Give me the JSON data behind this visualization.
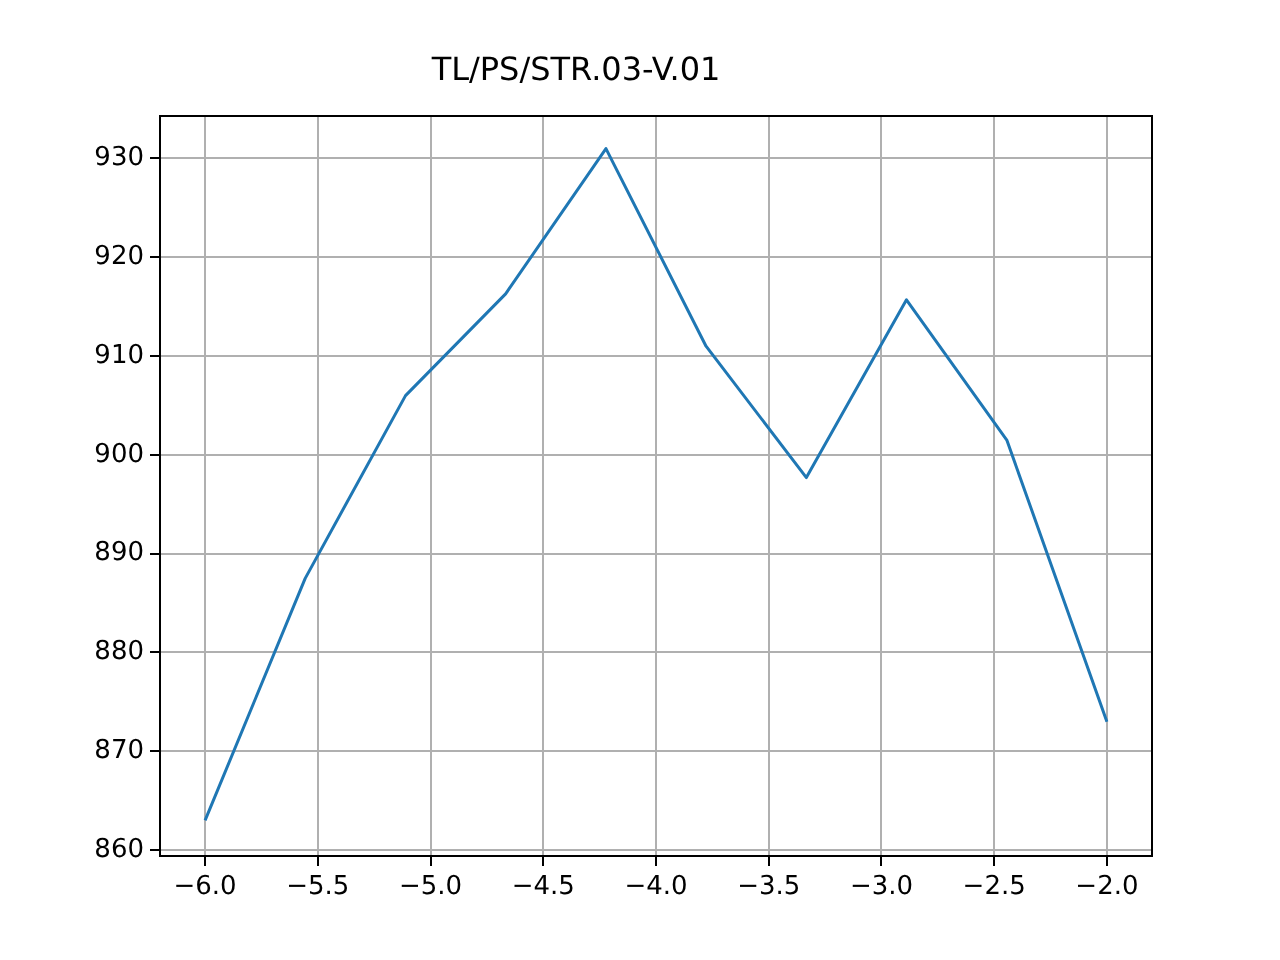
{
  "chart_data": {
    "type": "line",
    "title": "TL/PS/STR.03-V.01",
    "x": [
      -6,
      -5.556,
      -5.111,
      -4.667,
      -4.222,
      -3.778,
      -3.333,
      -2.889,
      -2.444,
      -2
    ],
    "series": [
      {
        "color": "#1f77b4",
        "values": [
          863,
          887.5,
          906,
          916.3,
          931,
          911,
          897.7,
          915.7,
          901.5,
          873
        ]
      }
    ],
    "xlim": [
      -6.2,
      -1.8
    ],
    "xticks": [
      {
        "value": -6,
        "label": "−6.0"
      },
      {
        "value": -5.5,
        "label": "−5.5"
      },
      {
        "value": -5,
        "label": "−5.0"
      },
      {
        "value": -4.5,
        "label": "−4.5"
      },
      {
        "value": -4,
        "label": "−4.0"
      },
      {
        "value": -3.5,
        "label": "−3.5"
      },
      {
        "value": -3,
        "label": "−3.0"
      },
      {
        "value": -2.5,
        "label": "−2.5"
      },
      {
        "value": -2,
        "label": "−2.0"
      }
    ],
    "ylim": [
      859.4,
      934.3
    ],
    "yticks": [
      860,
      870,
      880,
      890,
      900,
      910,
      920,
      930
    ],
    "grid": true,
    "legend": false,
    "marker": "none",
    "line_style": "solid"
  }
}
